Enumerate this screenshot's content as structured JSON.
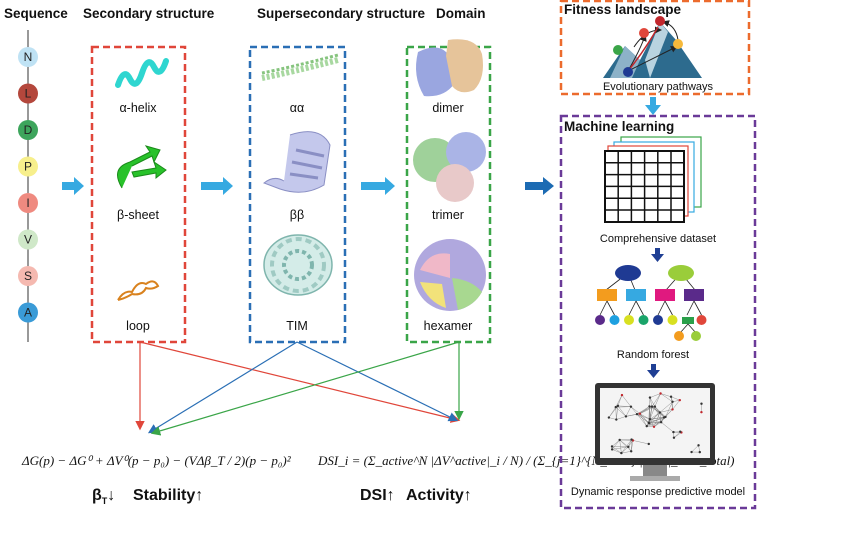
{
  "headers": {
    "sequence": "Sequence",
    "secondary": "Secondary structure",
    "supersecondary": "Supersecondary structure",
    "domain": "Domain",
    "fitness": "Fitness landscape",
    "ml": "Machine learning"
  },
  "sequence": [
    {
      "letter": "N",
      "color": "#bfe2f4"
    },
    {
      "letter": "L",
      "color": "#b4473c"
    },
    {
      "letter": "D",
      "color": "#3da55c"
    },
    {
      "letter": "P",
      "color": "#f7ef8c"
    },
    {
      "letter": "I",
      "color": "#ef8a80"
    },
    {
      "letter": "V",
      "color": "#cfe8c8"
    },
    {
      "letter": "S",
      "color": "#f5b9b0"
    },
    {
      "letter": "A",
      "color": "#3a9bd7"
    }
  ],
  "secondary": [
    "α-helix",
    "β-sheet",
    "loop"
  ],
  "supersecondary": [
    "αα",
    "ββ",
    "TIM"
  ],
  "domain": [
    "dimer",
    "trimer",
    "hexamer"
  ],
  "fitness_caption": "Evolutionary pathways",
  "ml_captions": {
    "dataset": "Comprehensive dataset",
    "forest": "Random forest",
    "model": "Dynamic response predictive model"
  },
  "formulas": {
    "stability": "ΔG(p) − ΔG⁰ + ΔV⁰(p − p₀) − (VΔβ_T / 2)(p − p₀)²",
    "dsi": "DSI_i = (Σ_active^N |ΔV^active|_i / N) / (Σ_{j=1}^{N_total} |ΔV^j|_i / N_total)"
  },
  "outcomes": {
    "beta": "β",
    "beta_sub": "T",
    "stability": "Stability",
    "dsi": "DSI",
    "activity": "Activity",
    "up": "↑",
    "down": "↓"
  },
  "colors": {
    "secondary_box": "#e0463a",
    "supersecondary_box": "#2a6fb5",
    "domain_box": "#3aa548",
    "fitness_box": "#ec6b2d",
    "ml_box": "#6a3a98",
    "flow_arrow": "#36a9e1",
    "ml_arrow": "#1f3f94"
  }
}
